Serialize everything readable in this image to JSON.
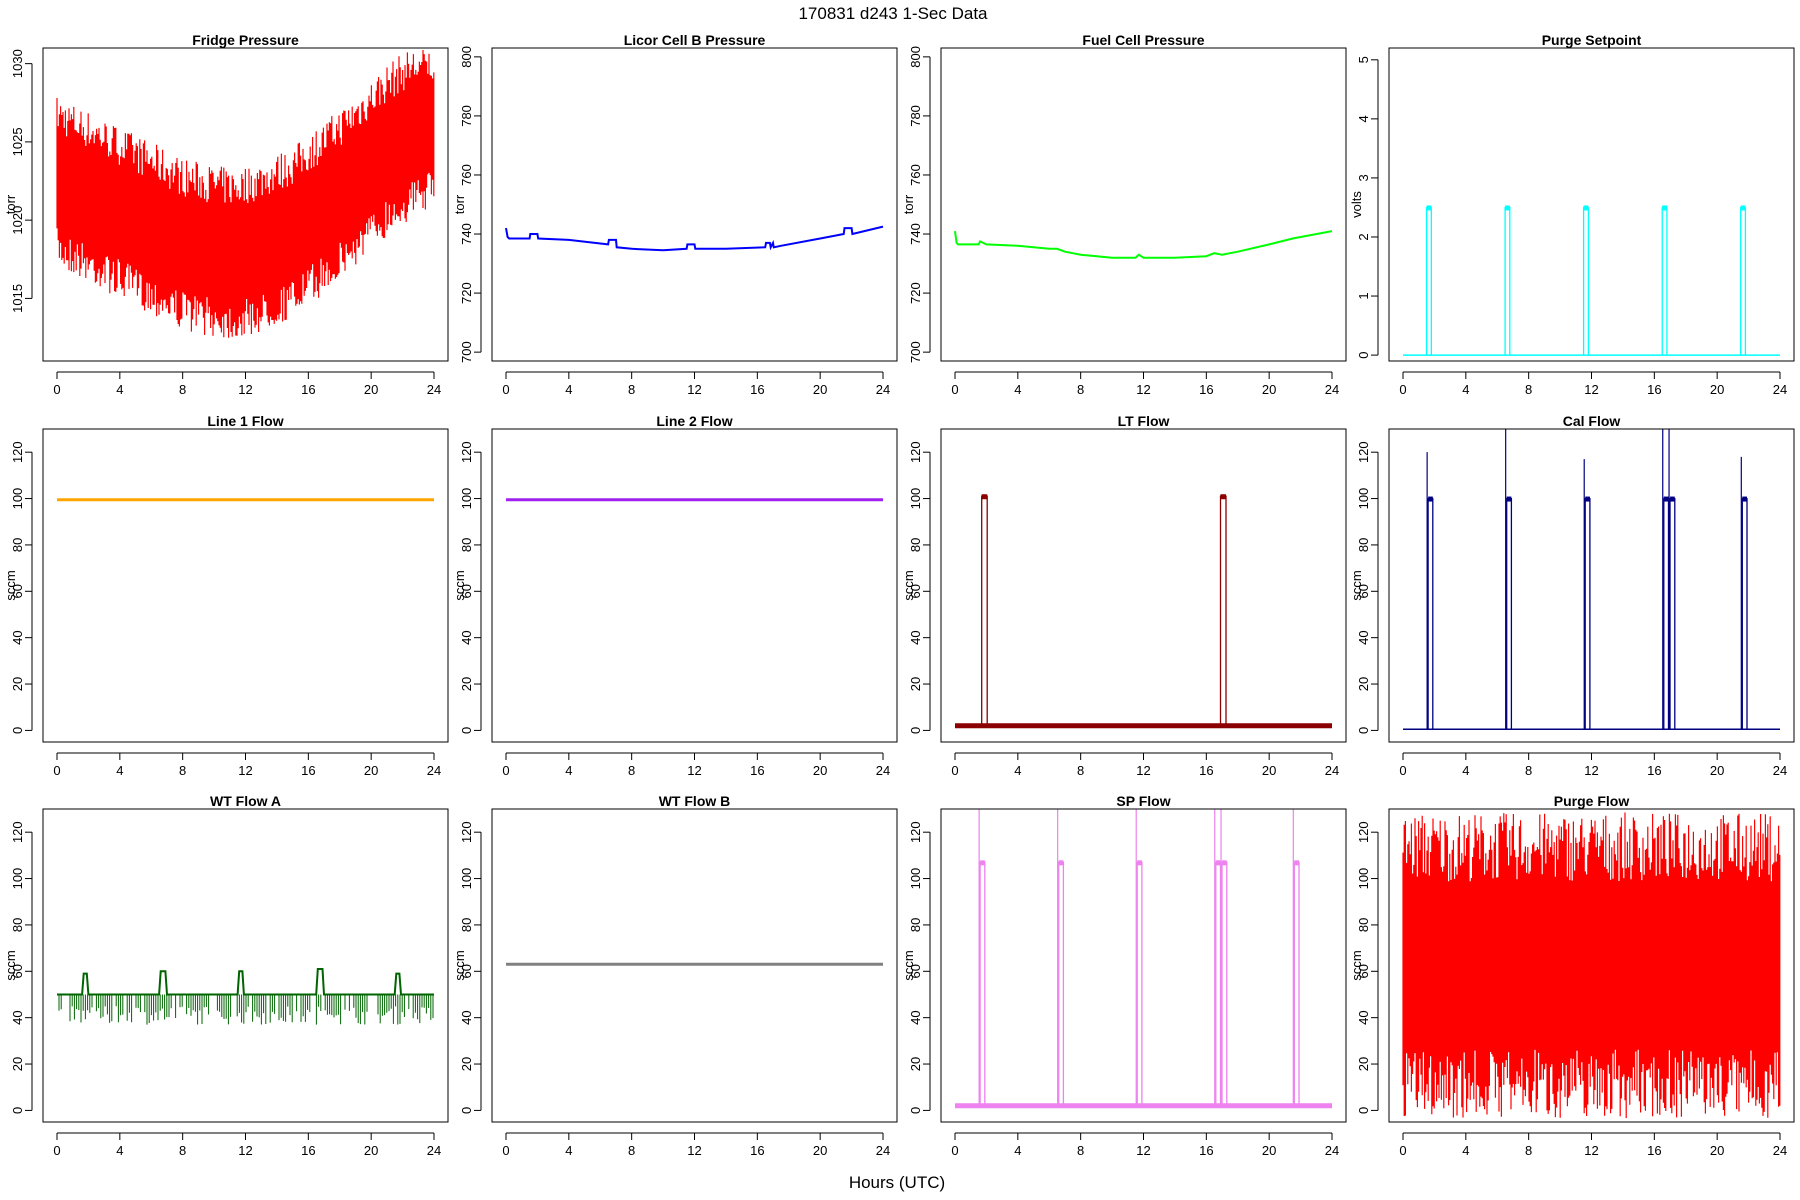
{
  "figure": {
    "title": "170831    d243    1-Sec Data",
    "xlabel": "Hours (UTC)"
  },
  "chart_data": [
    {
      "type": "line",
      "title": "Fridge Pressure",
      "ylabel": "torr",
      "color": "#ff0000",
      "xlim": [
        0,
        24
      ],
      "ylim": [
        1011,
        1031
      ],
      "xticks": [
        0,
        4,
        8,
        12,
        16,
        20,
        24
      ],
      "yticks": [
        1015,
        1020,
        1025,
        1030
      ],
      "style": "band",
      "series": [
        {
          "x": [
            0,
            2,
            4,
            6,
            8,
            10,
            11.5,
            13,
            15,
            17,
            19,
            21,
            22.5,
            24
          ],
          "center": [
            1022.5,
            1021.5,
            1020.5,
            1019.5,
            1018.5,
            1018,
            1017.8,
            1018.3,
            1019.2,
            1020.8,
            1022.5,
            1024.5,
            1025.5,
            1026
          ],
          "spread": [
            5.5,
            5.5,
            5.5,
            5.5,
            5.5,
            5.5,
            5.5,
            5.5,
            5.5,
            5.5,
            5.5,
            5.5,
            5.5,
            5
          ]
        }
      ]
    },
    {
      "type": "line",
      "title": "Licor Cell B Pressure",
      "ylabel": "torr",
      "color": "#0000ff",
      "xlim": [
        0,
        24
      ],
      "ylim": [
        697,
        803
      ],
      "xticks": [
        0,
        4,
        8,
        12,
        16,
        20,
        24
      ],
      "yticks": [
        700,
        720,
        740,
        760,
        780,
        800
      ],
      "style": "line",
      "series": [
        {
          "x": [
            0,
            0.1,
            0.2,
            1.5,
            1.55,
            2,
            2.05,
            4,
            6.5,
            6.55,
            7,
            7.05,
            8,
            10,
            11.5,
            11.55,
            12,
            12.05,
            14,
            16.5,
            16.55,
            16.8,
            16.85,
            17,
            17.05,
            17.5,
            20,
            21.5,
            21.55,
            22,
            22.05,
            24
          ],
          "y": [
            742,
            739,
            738.5,
            738.5,
            740,
            740,
            738.5,
            738,
            736.5,
            738,
            738,
            735.5,
            735,
            734.5,
            735,
            736.5,
            736.5,
            735,
            735,
            735.5,
            737,
            737,
            735.5,
            737,
            735.5,
            736,
            738.5,
            740,
            742,
            742,
            740,
            742.5
          ]
        }
      ]
    },
    {
      "type": "line",
      "title": "Fuel Cell Pressure",
      "ylabel": "torr",
      "color": "#00ff00",
      "xlim": [
        0,
        24
      ],
      "ylim": [
        697,
        803
      ],
      "xticks": [
        0,
        4,
        8,
        12,
        16,
        20,
        24
      ],
      "yticks": [
        700,
        720,
        740,
        760,
        780,
        800
      ],
      "style": "line",
      "series": [
        {
          "x": [
            0,
            0.1,
            0.2,
            1.5,
            1.6,
            2,
            4,
            6,
            6.5,
            7,
            8,
            10,
            11.5,
            11.7,
            12,
            14,
            16,
            16.5,
            17,
            18,
            20,
            21.5,
            22,
            24
          ],
          "y": [
            741,
            737,
            736.5,
            736.5,
            737.5,
            736.5,
            736,
            735,
            735,
            734,
            733,
            732,
            732,
            733,
            732,
            732,
            732.5,
            733.5,
            733,
            734,
            736.5,
            738.5,
            739,
            741
          ]
        }
      ]
    },
    {
      "type": "line",
      "title": "Purge Setpoint",
      "ylabel": "volts",
      "color": "#00ffff",
      "xlim": [
        0,
        24
      ],
      "ylim": [
        -0.1,
        5.2
      ],
      "xticks": [
        0,
        4,
        8,
        12,
        16,
        20,
        24
      ],
      "yticks": [
        0,
        1,
        2,
        3,
        4,
        5
      ],
      "style": "pulses",
      "baseline": 0,
      "series": [
        {
          "x": [
            1.5,
            6.5,
            11.5,
            16.5,
            21.5
          ],
          "width": 0.3,
          "y": [
            2.5,
            2.5,
            2.5,
            2.5,
            2.5
          ]
        }
      ]
    },
    {
      "type": "line",
      "title": "Line 1 Flow",
      "ylabel": "sccm",
      "color": "#ffa500",
      "xlim": [
        0,
        24
      ],
      "ylim": [
        -5,
        130
      ],
      "xticks": [
        0,
        4,
        8,
        12,
        16,
        20,
        24
      ],
      "yticks": [
        0,
        20,
        40,
        60,
        80,
        100,
        120
      ],
      "style": "line",
      "series": [
        {
          "x": [
            0,
            24
          ],
          "y": [
            99.5,
            99.5
          ]
        }
      ]
    },
    {
      "type": "line",
      "title": "Line 2 Flow",
      "ylabel": "sccm",
      "color": "#a020f0",
      "xlim": [
        0,
        24
      ],
      "ylim": [
        -5,
        130
      ],
      "xticks": [
        0,
        4,
        8,
        12,
        16,
        20,
        24
      ],
      "yticks": [
        0,
        20,
        40,
        60,
        80,
        100,
        120
      ],
      "style": "line",
      "series": [
        {
          "x": [
            0,
            24
          ],
          "y": [
            99.5,
            99.5
          ]
        }
      ]
    },
    {
      "type": "line",
      "title": "LT Flow",
      "ylabel": "sccm",
      "color": "#8b0000",
      "xlim": [
        0,
        24
      ],
      "ylim": [
        -5,
        130
      ],
      "xticks": [
        0,
        4,
        8,
        12,
        16,
        20,
        24
      ],
      "yticks": [
        0,
        20,
        40,
        60,
        80,
        100,
        120
      ],
      "style": "pulses",
      "baseline": 2,
      "series": [
        {
          "x": [
            1.7,
            16.9
          ],
          "width": 0.35,
          "y": [
            101,
            101
          ]
        }
      ]
    },
    {
      "type": "line",
      "title": "Cal Flow",
      "ylabel": "sccm",
      "color": "#000080",
      "xlim": [
        0,
        24
      ],
      "ylim": [
        -5,
        130
      ],
      "xticks": [
        0,
        4,
        8,
        12,
        16,
        20,
        24
      ],
      "yticks": [
        0,
        20,
        40,
        60,
        80,
        100,
        120
      ],
      "style": "pulses",
      "baseline": 0.5,
      "series": [
        {
          "x": [
            1.6,
            6.6,
            11.6,
            16.6,
            17.0,
            21.6
          ],
          "width": 0.3,
          "y": [
            100,
            100,
            100,
            100,
            100,
            100
          ],
          "spike": [
            120,
            130,
            117,
            130,
            130,
            118
          ]
        }
      ]
    },
    {
      "type": "line",
      "title": "WT Flow A",
      "ylabel": "sccm",
      "color": "#006400",
      "xlim": [
        0,
        24
      ],
      "ylim": [
        -5,
        130
      ],
      "xticks": [
        0,
        4,
        8,
        12,
        16,
        20,
        24
      ],
      "yticks": [
        0,
        20,
        40,
        60,
        80,
        100,
        120
      ],
      "style": "line",
      "series": [
        {
          "x": [
            0,
            1.6,
            1.7,
            1.9,
            2.0,
            6.5,
            6.6,
            6.9,
            7.0,
            11.5,
            11.6,
            11.8,
            11.9,
            16.5,
            16.6,
            16.9,
            17.0,
            21.5,
            21.6,
            21.8,
            21.9,
            24
          ],
          "y": [
            50,
            50,
            59,
            59,
            50,
            50,
            60,
            60,
            50,
            50,
            60,
            60,
            50,
            50,
            61,
            61,
            50,
            50,
            59,
            59,
            50,
            50
          ]
        }
      ]
    },
    {
      "type": "line",
      "title": "WT Flow B",
      "ylabel": "sccm",
      "color": "#808080",
      "xlim": [
        0,
        24
      ],
      "ylim": [
        -5,
        130
      ],
      "xticks": [
        0,
        4,
        8,
        12,
        16,
        20,
        24
      ],
      "yticks": [
        0,
        20,
        40,
        60,
        80,
        100,
        120
      ],
      "style": "line",
      "series": [
        {
          "x": [
            0,
            24
          ],
          "y": [
            63,
            63
          ]
        }
      ]
    },
    {
      "type": "line",
      "title": "SP Flow",
      "ylabel": "sccm",
      "color": "#ee82ee",
      "xlim": [
        0,
        24
      ],
      "ylim": [
        -5,
        130
      ],
      "xticks": [
        0,
        4,
        8,
        12,
        16,
        20,
        24
      ],
      "yticks": [
        0,
        20,
        40,
        60,
        80,
        100,
        120
      ],
      "style": "pulses",
      "baseline": 2,
      "series": [
        {
          "x": [
            1.6,
            6.6,
            11.6,
            16.6,
            17.0,
            21.6
          ],
          "width": 0.3,
          "y": [
            107,
            107,
            107,
            107,
            107,
            107
          ],
          "spike": [
            130,
            130,
            130,
            130,
            130,
            130
          ]
        }
      ]
    },
    {
      "type": "line",
      "title": "Purge Flow",
      "ylabel": "sccm",
      "color": "#ff0000",
      "xlim": [
        0,
        24
      ],
      "ylim": [
        -5,
        130
      ],
      "xticks": [
        0,
        4,
        8,
        12,
        16,
        20,
        24
      ],
      "yticks": [
        0,
        20,
        40,
        60,
        80,
        100,
        120
      ],
      "style": "band",
      "series": [
        {
          "x": [
            0,
            24
          ],
          "center": [
            62.5,
            62.5
          ],
          "spread": [
            66,
            66
          ]
        }
      ]
    }
  ]
}
